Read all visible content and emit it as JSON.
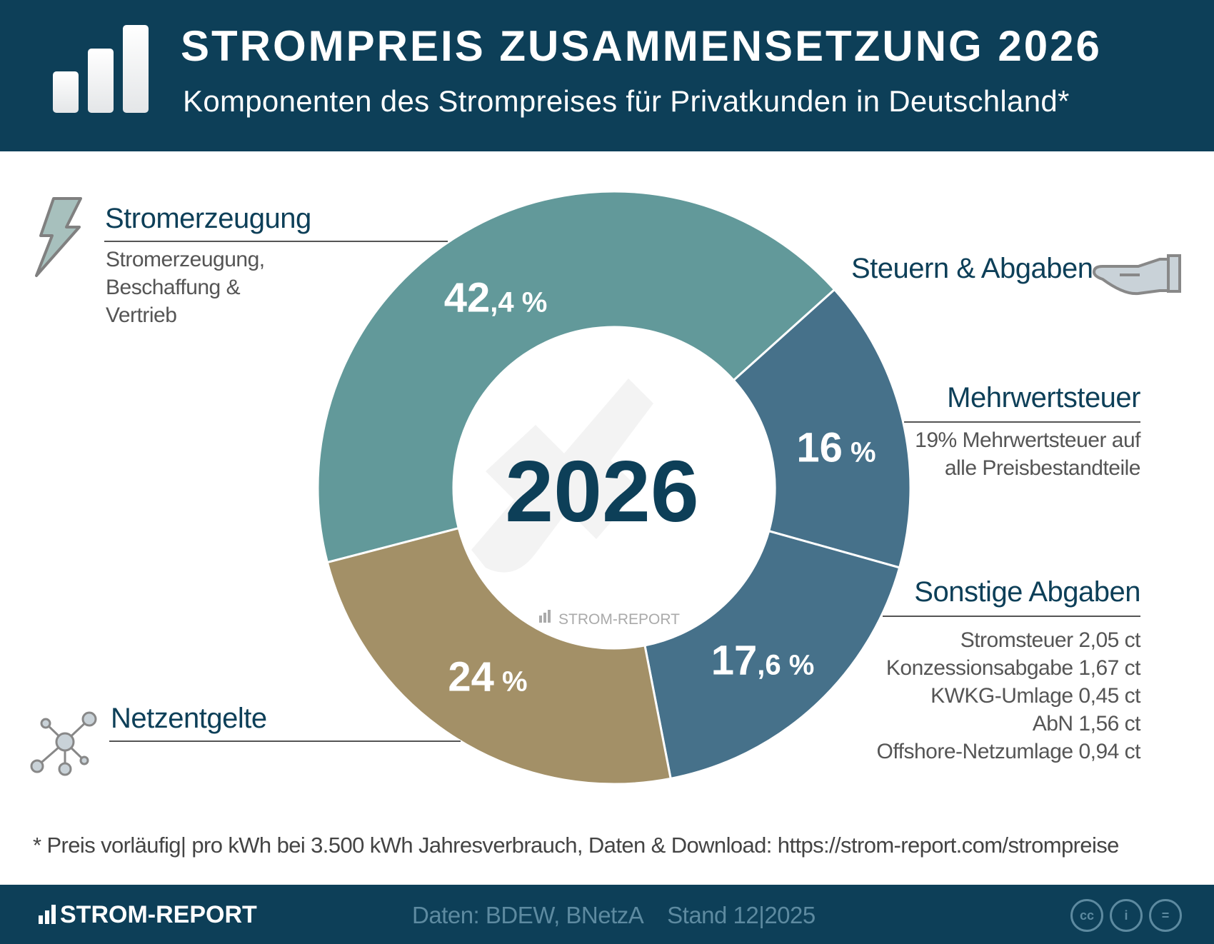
{
  "header": {
    "title": "STROMPREIS ZUSAMMENSETZUNG 2026",
    "subtitle": "Komponenten des Strompreises für Privatkunden in Deutschland*",
    "logo_icon": "bar-chart-icon"
  },
  "labels": {
    "stromerzeugung": {
      "title": "Stromerzeugung",
      "lines": [
        "Stromerzeugung,",
        "Beschaffung &",
        "Vertrieb"
      ],
      "icon": "lightning-icon"
    },
    "steuern": {
      "title": "Steuern & Abgaben",
      "icon": "hand-icon"
    },
    "mwst": {
      "title": "Mehrwertsteuer",
      "lines": [
        "19% Mehrwertsteuer auf",
        "alle Preisbestandteile"
      ]
    },
    "sonstige": {
      "title": "Sonstige Abgaben",
      "lines": [
        "Stromsteuer 2,05 ct",
        "Konzessionsabgabe 1,67 ct",
        "KWKG-Umlage 0,45 ct",
        "AbN 1,56 ct",
        "Offshore-Netzumlage 0,94 ct"
      ]
    },
    "netz": {
      "title": "Netzentgelte",
      "icon": "network-icon"
    }
  },
  "chart_data": {
    "type": "pie",
    "variant": "donut",
    "center_label": "2026",
    "watermark": "STROM-REPORT",
    "categories": [
      "Stromerzeugung",
      "Mehrwertsteuer",
      "Sonstige Abgaben",
      "Netzentgelte"
    ],
    "values": [
      42.4,
      16,
      17.6,
      24
    ],
    "value_labels": [
      {
        "main": "42",
        "decimal": ",4",
        "unit": " %"
      },
      {
        "main": "16",
        "decimal": "",
        "unit": " %"
      },
      {
        "main": "17",
        "decimal": ",6",
        "unit": " %"
      },
      {
        "main": "24",
        "decimal": "",
        "unit": " %"
      }
    ],
    "colors": [
      "#62999a",
      "#46718a",
      "#46718a",
      "#a39067"
    ]
  },
  "footnote": "* Preis vorläufig| pro kWh bei 3.500 kWh Jahresverbrauch, Daten & Download: https://strom-report.com/strompreise",
  "footer": {
    "brand": "STROM-REPORT",
    "source": "Daten: BDEW, BNetzA    Stand 12|2025",
    "license_icons": [
      "cc-icon",
      "attribution-icon",
      "no-derivatives-icon"
    ]
  },
  "colors": {
    "navy": "#0d3f58",
    "footer_text": "#5d8aa0"
  }
}
